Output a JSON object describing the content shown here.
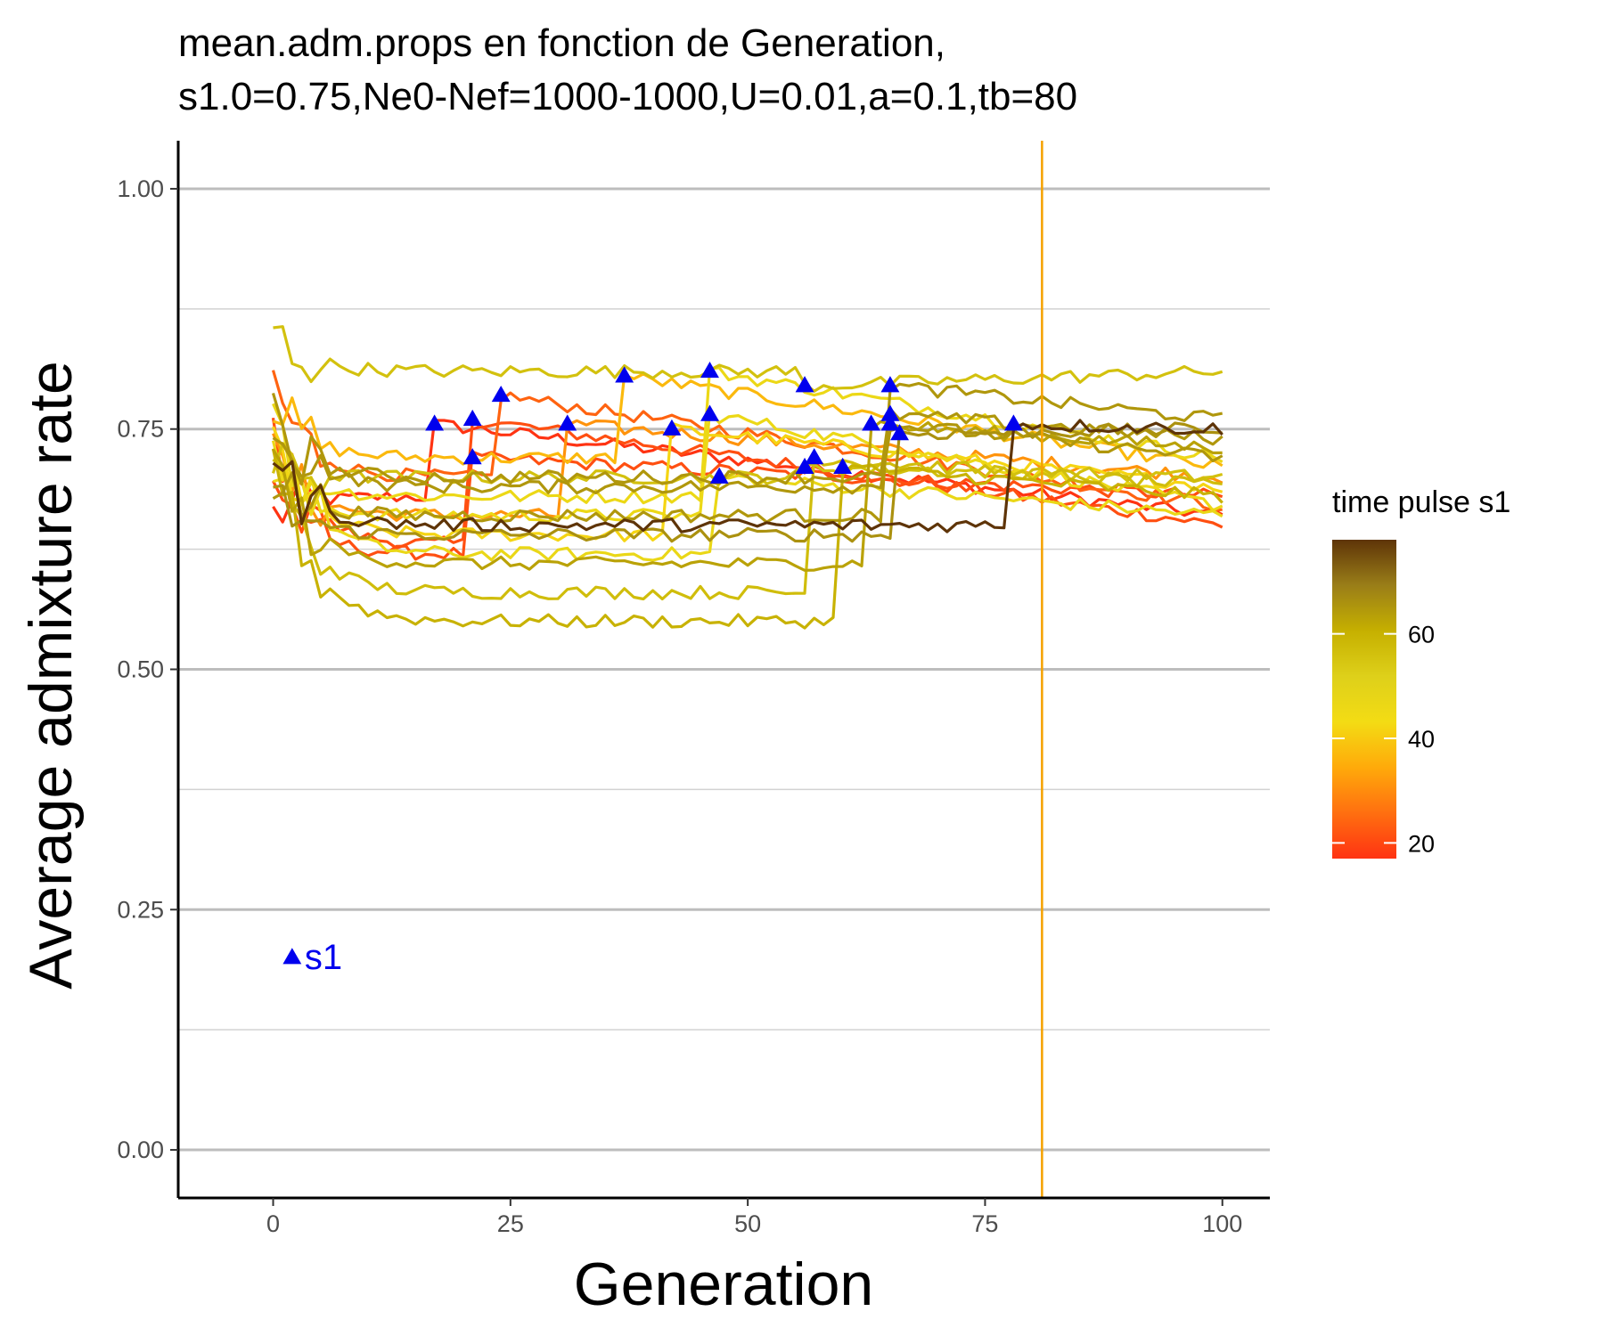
{
  "chart_data": {
    "type": "line",
    "title": "mean.adm.props en fonction de Generation,",
    "subtitle": "s1.0=0.75,Ne0-Nef=1000-1000,U=0.01,a=0.1,tb=80",
    "xlabel": "Generation",
    "ylabel": "Average admixture rate",
    "xlim": [
      -10,
      105
    ],
    "ylim": [
      -0.05,
      1.05
    ],
    "x_ticks": [
      0,
      25,
      50,
      75,
      100
    ],
    "x_tick_labels": [
      "0",
      "25",
      "50",
      "75",
      "100"
    ],
    "y_ticks": [
      0,
      0.25,
      0.5,
      0.75,
      1
    ],
    "y_tick_labels": [
      "0.00",
      "0.25",
      "0.50",
      "0.75",
      "1.00"
    ],
    "y_minor_ticks": [
      0.125,
      0.375,
      0.625,
      0.875
    ],
    "grid": "horizontal",
    "vline": {
      "x": 81,
      "color": "#f5a100"
    },
    "legend": {
      "title": "time pulse s1",
      "position": "right",
      "min": 17,
      "max": 78,
      "ticks": [
        20,
        40,
        60
      ],
      "tick_labels": [
        "20",
        "40",
        "60"
      ],
      "colors": [
        "#ff3312",
        "#ff6f10",
        "#ffaa0a",
        "#f3dc14",
        "#ded01a",
        "#c6b000",
        "#9a7e18",
        "#5e3408"
      ]
    },
    "series": [
      {
        "pulse": 17,
        "start": 0.66,
        "pre": 0.68,
        "after": 0.755,
        "end": 0.66
      },
      {
        "pulse": 21,
        "start": 0.75,
        "pre": 0.63,
        "after": 0.76,
        "end": 0.65
      },
      {
        "pulse": 21,
        "start": 0.7,
        "pre": 0.62,
        "after": 0.72,
        "end": 0.68
      },
      {
        "pulse": 24,
        "start": 0.8,
        "pre": 0.7,
        "after": 0.785,
        "end": 0.67
      },
      {
        "pulse": 31,
        "start": 0.72,
        "pre": 0.66,
        "after": 0.755,
        "end": 0.7
      },
      {
        "pulse": 37,
        "start": 0.78,
        "pre": 0.72,
        "after": 0.805,
        "end": 0.71
      },
      {
        "pulse": 42,
        "start": 0.74,
        "pre": 0.64,
        "after": 0.75,
        "end": 0.69
      },
      {
        "pulse": 46,
        "start": 0.72,
        "pre": 0.68,
        "after": 0.81,
        "end": 0.72
      },
      {
        "pulse": 46,
        "start": 0.7,
        "pre": 0.66,
        "after": 0.765,
        "end": 0.67
      },
      {
        "pulse": 47,
        "start": 0.79,
        "pre": 0.62,
        "after": 0.7,
        "end": 0.66
      },
      {
        "pulse": 56,
        "start": 0.85,
        "pre": 0.81,
        "after": 0.795,
        "end": 0.81
      },
      {
        "pulse": 56,
        "start": 0.71,
        "pre": 0.7,
        "after": 0.71,
        "end": 0.7
      },
      {
        "pulse": 57,
        "start": 0.73,
        "pre": 0.58,
        "after": 0.72,
        "end": 0.69
      },
      {
        "pulse": 60,
        "start": 0.74,
        "pre": 0.55,
        "after": 0.71,
        "end": 0.68
      },
      {
        "pulse": 63,
        "start": 0.72,
        "pre": 0.61,
        "after": 0.755,
        "end": 0.73
      },
      {
        "pulse": 65,
        "start": 0.7,
        "pre": 0.66,
        "after": 0.795,
        "end": 0.76
      },
      {
        "pulse": 65,
        "start": 0.75,
        "pre": 0.7,
        "after": 0.765,
        "end": 0.74
      },
      {
        "pulse": 65,
        "start": 0.77,
        "pre": 0.69,
        "after": 0.755,
        "end": 0.72
      },
      {
        "pulse": 66,
        "start": 0.68,
        "pre": 0.64,
        "after": 0.745,
        "end": 0.75
      },
      {
        "pulse": 78,
        "start": 0.72,
        "pre": 0.65,
        "after": 0.755,
        "end": 0.75
      }
    ],
    "markers": [
      {
        "x": 17,
        "y": 0.755
      },
      {
        "x": 21,
        "y": 0.76
      },
      {
        "x": 21,
        "y": 0.72
      },
      {
        "x": 24,
        "y": 0.785
      },
      {
        "x": 31,
        "y": 0.755
      },
      {
        "x": 37,
        "y": 0.805
      },
      {
        "x": 42,
        "y": 0.75
      },
      {
        "x": 46,
        "y": 0.81
      },
      {
        "x": 46,
        "y": 0.765
      },
      {
        "x": 47,
        "y": 0.7
      },
      {
        "x": 56,
        "y": 0.795
      },
      {
        "x": 56,
        "y": 0.71
      },
      {
        "x": 57,
        "y": 0.72
      },
      {
        "x": 60,
        "y": 0.71
      },
      {
        "x": 63,
        "y": 0.755
      },
      {
        "x": 65,
        "y": 0.795
      },
      {
        "x": 65,
        "y": 0.765
      },
      {
        "x": 65,
        "y": 0.755
      },
      {
        "x": 66,
        "y": 0.745
      },
      {
        "x": 78,
        "y": 0.755
      }
    ],
    "marker_color": "#0000ee",
    "annotation": {
      "label": "s1",
      "x": 2,
      "y": 0.2,
      "color": "#0000ee"
    }
  }
}
